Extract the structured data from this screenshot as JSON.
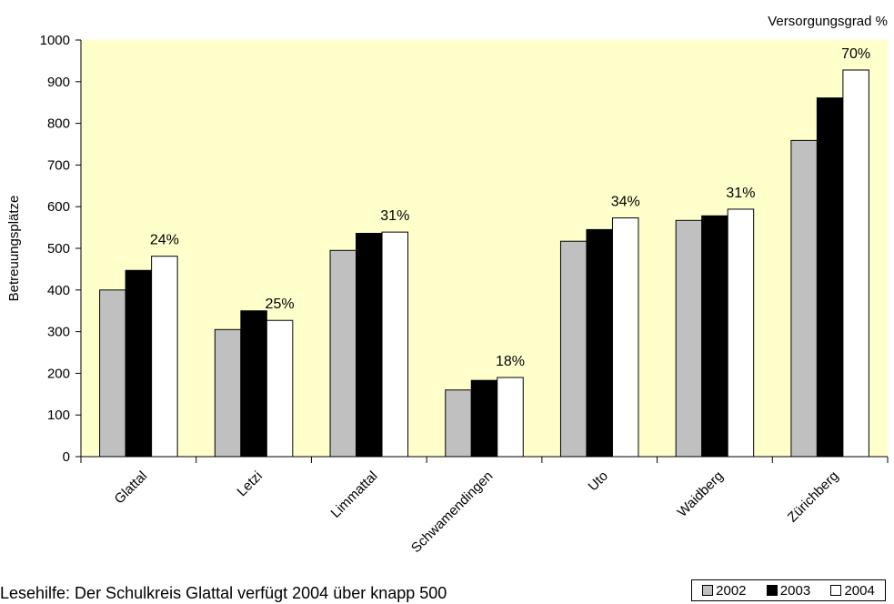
{
  "chart_data": {
    "type": "bar",
    "title": "",
    "xlabel": "",
    "ylabel": "Betreuungsplätze",
    "secondary_label": "Versorgungsgrad %",
    "ylim": [
      0,
      1000
    ],
    "yticks": [
      "0",
      "100",
      "200",
      "300",
      "400",
      "500",
      "600",
      "700",
      "800",
      "900",
      "1000"
    ],
    "grid": false,
    "plot_background": "#FFFFCC",
    "legend_position": "bottom-right",
    "categories": [
      "Glattal",
      "Letzi",
      "Limmattal",
      "Schwamendingen",
      "Uto",
      "Waidberg",
      "Zürichberg"
    ],
    "series": [
      {
        "name": "2002",
        "color": "#C0C0C0",
        "values": [
          400,
          305,
          495,
          160,
          517,
          567,
          759
        ]
      },
      {
        "name": "2003",
        "color": "#000000",
        "values": [
          447,
          350,
          536,
          183,
          545,
          578,
          861
        ]
      },
      {
        "name": "2004",
        "color": "#FFFFFF",
        "values": [
          481,
          327,
          539,
          190,
          573,
          594,
          928
        ]
      }
    ],
    "annotations": [
      "24%",
      "25%",
      "31%",
      "18%",
      "34%",
      "31%",
      "70%"
    ]
  },
  "caption": "Lesehilfe: Der Schulkreis Glattal verfügt 2004 über knapp 500"
}
